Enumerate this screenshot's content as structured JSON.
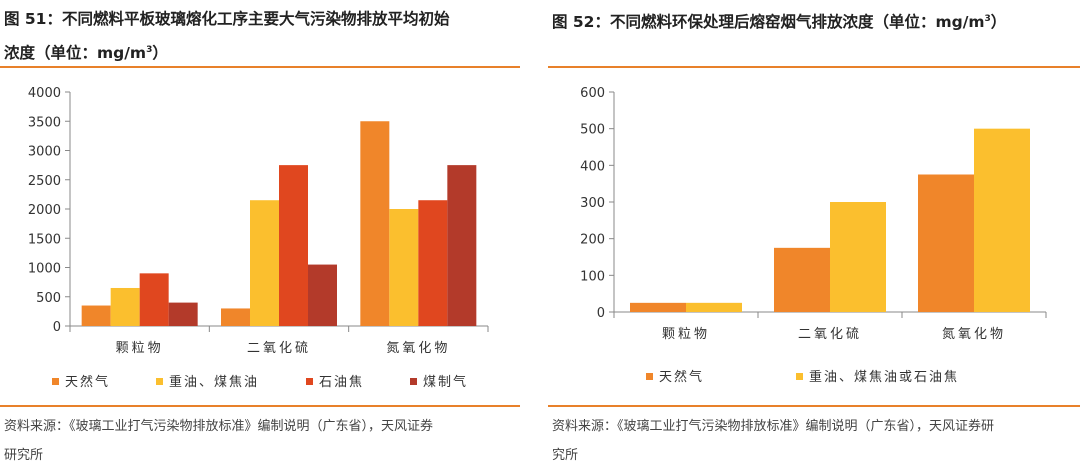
{
  "left": {
    "title_line1": "图 51：不同燃料平板玻璃熔化工序主要大气污染物排放平均初始",
    "title_line2_prefix": "浓度（单位：mg/m",
    "title_sup": "3",
    "title_line2_suffix": "）",
    "source_line1": "资料来源：《玻璃工业打气污染物排放标准》编制说明（广东省），天风证券",
    "source_line2": "研究所"
  },
  "right": {
    "title_prefix": "图 52：不同燃料环保处理后熔窑烟气排放浓度（单位：mg/m",
    "title_sup": "3",
    "title_suffix": "）",
    "source_line1": "资料来源：《玻璃工业打气污染物排放标准》编制说明（广东省），天风证券研",
    "source_line2": "究所"
  },
  "chart_data": [
    {
      "type": "bar",
      "categories": [
        "颗粒物",
        "二氧化硫",
        "氮氧化物"
      ],
      "series": [
        {
          "name": "天然气",
          "color": "#f0862a",
          "values": [
            350,
            300,
            3500
          ]
        },
        {
          "name": "重油、煤焦油",
          "color": "#fbbf2e",
          "values": [
            650,
            2150,
            2000
          ]
        },
        {
          "name": "石油焦",
          "color": "#e0471f",
          "values": [
            900,
            2750,
            2150
          ]
        },
        {
          "name": "煤制气",
          "color": "#b33a2a",
          "values": [
            400,
            1050,
            2750
          ]
        }
      ],
      "ylim": [
        0,
        4000
      ],
      "yticks": [
        "0",
        "500",
        "1000",
        "1500",
        "2000",
        "2500",
        "3000",
        "3500",
        "4000"
      ],
      "legend": "bottom"
    },
    {
      "type": "bar",
      "categories": [
        "颗粒物",
        "二氧化硫",
        "氮氧化物"
      ],
      "series": [
        {
          "name": "天然气",
          "color": "#f0862a",
          "values": [
            25,
            175,
            375
          ]
        },
        {
          "name": "重油、煤焦油或石油焦",
          "color": "#fbbf2e",
          "values": [
            25,
            300,
            500
          ]
        }
      ],
      "ylim": [
        0,
        600
      ],
      "yticks": [
        "0",
        "100",
        "200",
        "300",
        "400",
        "500",
        "600"
      ],
      "legend": "bottom"
    }
  ]
}
